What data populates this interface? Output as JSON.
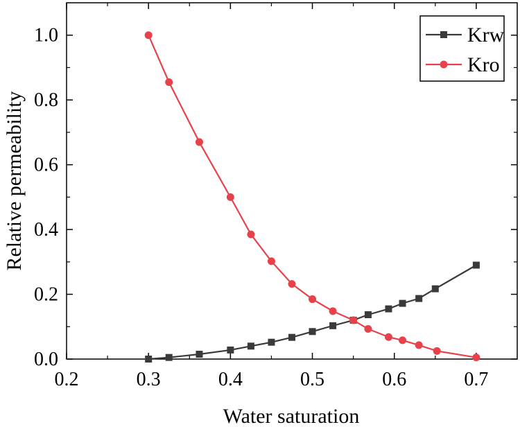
{
  "chart_data": {
    "type": "line",
    "title": "",
    "xlabel": "Water saturation",
    "ylabel": "Relative permeability",
    "xlim": [
      0.2,
      0.75
    ],
    "ylim": [
      0.0,
      1.1
    ],
    "xticks": [
      0.2,
      0.3,
      0.4,
      0.5,
      0.6,
      0.7
    ],
    "xtick_labels": [
      "0.2",
      "0.3",
      "0.4",
      "0.5",
      "0.6",
      "0.7"
    ],
    "yticks": [
      0.0,
      0.2,
      0.4,
      0.6,
      0.8,
      1.0
    ],
    "ytick_labels": [
      "0.0",
      "0.2",
      "0.4",
      "0.6",
      "0.8",
      "1.0"
    ],
    "grid": false,
    "legend_position": "top-right",
    "series": [
      {
        "name": "Krw",
        "color": "#3a3a3a",
        "marker": "square",
        "x": [
          0.3,
          0.325,
          0.362,
          0.4,
          0.425,
          0.45,
          0.475,
          0.5,
          0.525,
          0.55,
          0.568,
          0.593,
          0.61,
          0.63,
          0.65,
          0.7
        ],
        "y": [
          0.0,
          0.005,
          0.015,
          0.028,
          0.04,
          0.052,
          0.067,
          0.085,
          0.103,
          0.12,
          0.137,
          0.155,
          0.172,
          0.187,
          0.217,
          0.29
        ]
      },
      {
        "name": "Kro",
        "color": "#e8414a",
        "marker": "circle",
        "x": [
          0.3,
          0.325,
          0.362,
          0.4,
          0.425,
          0.45,
          0.475,
          0.5,
          0.525,
          0.55,
          0.568,
          0.593,
          0.61,
          0.63,
          0.652,
          0.7
        ],
        "y": [
          1.0,
          0.855,
          0.67,
          0.5,
          0.385,
          0.302,
          0.232,
          0.185,
          0.148,
          0.12,
          0.093,
          0.068,
          0.058,
          0.043,
          0.025,
          0.005
        ]
      }
    ]
  }
}
